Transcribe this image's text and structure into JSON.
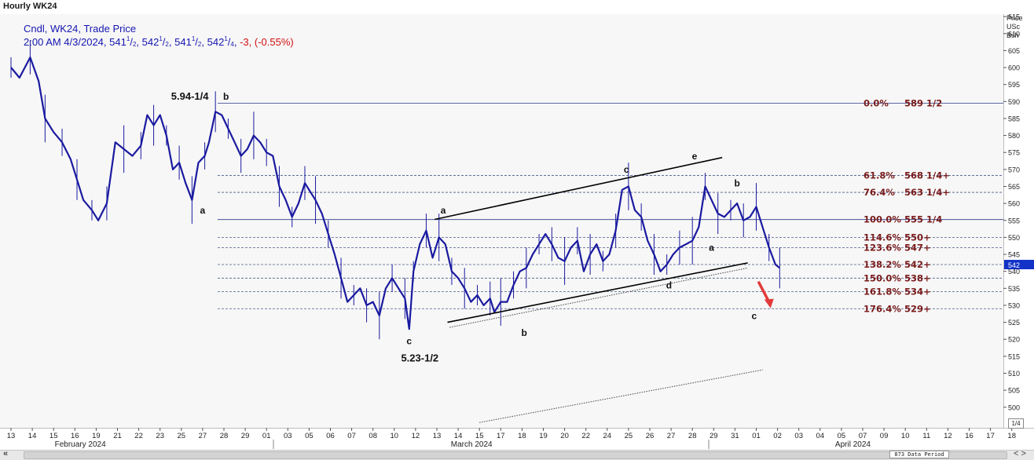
{
  "window": {
    "title": "Hourly WK24"
  },
  "legend": {
    "line1": "Cndl, WK24, Trade Price",
    "time": "2:00 AM 4/3/2024,",
    "o_int": "541",
    "o_frac": "1",
    "o_den": "2",
    "h_int": "542",
    "h_frac": "1",
    "h_den": "2",
    "l_int": "541",
    "l_frac": "1",
    "l_den": "2",
    "c_int": "542",
    "c_frac": "1",
    "c_den": "4",
    "change": "-3, (-0.55%)"
  },
  "axis_header": {
    "l1": "Price",
    "l2": "USc",
    "l3": "Bsh"
  },
  "current_price_label": "542",
  "controls": {
    "scroll_left": "«",
    "scroll_right": "< >",
    "period_badge": "873 Data Period",
    "zoom": "1/4"
  },
  "colors": {
    "candle": "#1a1aa0",
    "fib": "#7a1c1c",
    "marker": "#1232c8",
    "arrow": "#e23b3b"
  },
  "chart_data": {
    "type": "line",
    "title": "Hourly WK24",
    "series_name": "WK24",
    "ylim": [
      495,
      620
    ],
    "y_ticks": [
      500,
      505,
      510,
      515,
      520,
      525,
      530,
      535,
      540,
      545,
      550,
      555,
      560,
      565,
      570,
      575,
      580,
      585,
      590,
      595,
      600,
      605,
      610,
      615
    ],
    "x_labels": [
      "13",
      "14",
      "15",
      "16",
      "19",
      "21",
      "22",
      "23",
      "25",
      "27",
      "28",
      "29",
      "01",
      "03",
      "05",
      "06",
      "07",
      "08",
      "10",
      "12",
      "13",
      "14",
      "15",
      "17",
      "18",
      "19",
      "20",
      "22",
      "24",
      "25",
      "26",
      "27",
      "28",
      "29",
      "31",
      "01",
      "02",
      "03",
      "04",
      "05",
      "07",
      "09",
      "10",
      "11",
      "12",
      "16",
      "17",
      "18"
    ],
    "x_label_idx": [
      0,
      1,
      2,
      3,
      4,
      5,
      6,
      7,
      8,
      9,
      10,
      11,
      12,
      13,
      14,
      15,
      16,
      17,
      18,
      19,
      20,
      21,
      22,
      23,
      24,
      25,
      26,
      27,
      28,
      29,
      30,
      31,
      32,
      33,
      34,
      35,
      36,
      37,
      38,
      39,
      40,
      41,
      42,
      43,
      44,
      45,
      46,
      47
    ],
    "months": [
      {
        "label": "February 2024",
        "pos": 0.08
      },
      {
        "label": "March 2024",
        "pos": 0.47
      },
      {
        "label": "April 2024",
        "pos": 0.85
      }
    ],
    "price_path": [
      [
        0,
        600
      ],
      [
        0.4,
        597
      ],
      [
        0.9,
        603
      ],
      [
        1.3,
        596
      ],
      [
        1.6,
        585
      ],
      [
        2.0,
        581
      ],
      [
        2.4,
        578
      ],
      [
        2.8,
        573
      ],
      [
        3.1,
        567
      ],
      [
        3.4,
        561
      ],
      [
        3.8,
        558
      ],
      [
        4.1,
        555
      ],
      [
        4.5,
        560
      ],
      [
        4.9,
        578
      ],
      [
        5.3,
        576
      ],
      [
        5.7,
        574
      ],
      [
        6.1,
        577
      ],
      [
        6.4,
        586
      ],
      [
        6.7,
        583
      ],
      [
        7.0,
        586
      ],
      [
        7.3,
        580
      ],
      [
        7.6,
        570
      ],
      [
        7.9,
        572
      ],
      [
        8.2,
        566
      ],
      [
        8.5,
        561
      ],
      [
        8.8,
        572
      ],
      [
        9.1,
        574
      ],
      [
        9.3,
        578
      ],
      [
        9.6,
        587
      ],
      [
        9.9,
        586
      ],
      [
        10.2,
        582
      ],
      [
        10.5,
        578
      ],
      [
        10.8,
        574
      ],
      [
        11.1,
        576
      ],
      [
        11.4,
        580
      ],
      [
        11.7,
        578
      ],
      [
        12.0,
        575
      ],
      [
        12.3,
        574
      ],
      [
        12.6,
        565
      ],
      [
        12.9,
        561
      ],
      [
        13.2,
        556
      ],
      [
        13.5,
        560
      ],
      [
        13.8,
        566
      ],
      [
        14.1,
        563
      ],
      [
        14.3,
        561
      ],
      [
        14.6,
        557
      ],
      [
        14.9,
        551
      ],
      [
        15.2,
        545
      ],
      [
        15.5,
        538
      ],
      [
        15.8,
        531
      ],
      [
        16.1,
        533
      ],
      [
        16.4,
        535
      ],
      [
        16.7,
        530
      ],
      [
        17.0,
        531
      ],
      [
        17.3,
        527
      ],
      [
        17.6,
        535
      ],
      [
        17.9,
        538
      ],
      [
        18.2,
        535
      ],
      [
        18.5,
        532
      ],
      [
        18.7,
        523
      ],
      [
        18.9,
        540
      ],
      [
        19.2,
        548
      ],
      [
        19.5,
        552
      ],
      [
        19.8,
        544
      ],
      [
        20.1,
        550
      ],
      [
        20.4,
        548
      ],
      [
        20.7,
        540
      ],
      [
        21.0,
        538
      ],
      [
        21.3,
        535
      ],
      [
        21.6,
        531
      ],
      [
        21.9,
        533
      ],
      [
        22.2,
        530
      ],
      [
        22.5,
        532
      ],
      [
        22.7,
        528
      ],
      [
        23.0,
        531
      ],
      [
        23.3,
        531
      ],
      [
        23.6,
        536
      ],
      [
        23.9,
        540
      ],
      [
        24.2,
        541
      ],
      [
        24.5,
        545
      ],
      [
        24.8,
        548
      ],
      [
        25.1,
        551
      ],
      [
        25.4,
        548
      ],
      [
        25.7,
        544
      ],
      [
        26.0,
        543
      ],
      [
        26.3,
        547
      ],
      [
        26.6,
        549
      ],
      [
        26.9,
        540
      ],
      [
        27.2,
        545
      ],
      [
        27.5,
        548
      ],
      [
        27.8,
        543
      ],
      [
        28.1,
        545
      ],
      [
        28.4,
        552
      ],
      [
        28.7,
        564
      ],
      [
        29.0,
        565
      ],
      [
        29.3,
        558
      ],
      [
        29.6,
        556
      ],
      [
        29.9,
        549
      ],
      [
        30.2,
        545
      ],
      [
        30.5,
        540
      ],
      [
        30.8,
        542
      ],
      [
        31.1,
        545
      ],
      [
        31.4,
        547
      ],
      [
        31.7,
        548
      ],
      [
        32.0,
        549
      ],
      [
        32.3,
        553
      ],
      [
        32.6,
        565
      ],
      [
        32.9,
        561
      ],
      [
        33.2,
        557
      ],
      [
        33.5,
        556
      ],
      [
        33.8,
        558
      ],
      [
        34.1,
        560
      ],
      [
        34.4,
        555
      ],
      [
        34.7,
        556
      ],
      [
        35.0,
        559
      ],
      [
        35.3,
        553
      ],
      [
        35.6,
        547
      ],
      [
        35.9,
        542
      ],
      [
        36.1,
        541
      ]
    ],
    "fib_levels": [
      {
        "pct": "0.0%",
        "price": "589 1/2",
        "y": 589.5
      },
      {
        "pct": "61.8%",
        "price": "568 1/4+",
        "y": 568.25
      },
      {
        "pct": "76.4%",
        "price": "563 1/4+",
        "y": 563.25
      },
      {
        "pct": "100.0%",
        "price": "555 1/4",
        "y": 555.25
      },
      {
        "pct": "114.6%",
        "price": "550+",
        "y": 550
      },
      {
        "pct": "123.6%",
        "price": "547+",
        "y": 547
      },
      {
        "pct": "138.2%",
        "price": "542+",
        "y": 542
      },
      {
        "pct": "150.0%",
        "price": "538+",
        "y": 538
      },
      {
        "pct": "161.8%",
        "price": "534+",
        "y": 534
      },
      {
        "pct": "176.4%",
        "price": "529+",
        "y": 529
      }
    ],
    "wave_labels": [
      {
        "t": "5.94-1/4",
        "x": 8.4,
        "y": 590.5,
        "big": true
      },
      {
        "t": "b",
        "x": 10.1,
        "y": 590.5
      },
      {
        "t": "a",
        "x": 9.0,
        "y": 557
      },
      {
        "t": "c",
        "x": 18.7,
        "y": 518.5
      },
      {
        "t": "5.23-1/2",
        "x": 19.2,
        "y": 513.5,
        "big": true
      },
      {
        "t": "a",
        "x": 20.3,
        "y": 557
      },
      {
        "t": "b",
        "x": 24.1,
        "y": 521
      },
      {
        "t": "c",
        "x": 28.9,
        "y": 569
      },
      {
        "t": "d",
        "x": 30.9,
        "y": 535
      },
      {
        "t": "e",
        "x": 32.1,
        "y": 573
      },
      {
        "t": "a",
        "x": 32.9,
        "y": 546
      },
      {
        "t": "b",
        "x": 34.1,
        "y": 565
      },
      {
        "t": "c",
        "x": 34.9,
        "y": 526
      }
    ]
  }
}
